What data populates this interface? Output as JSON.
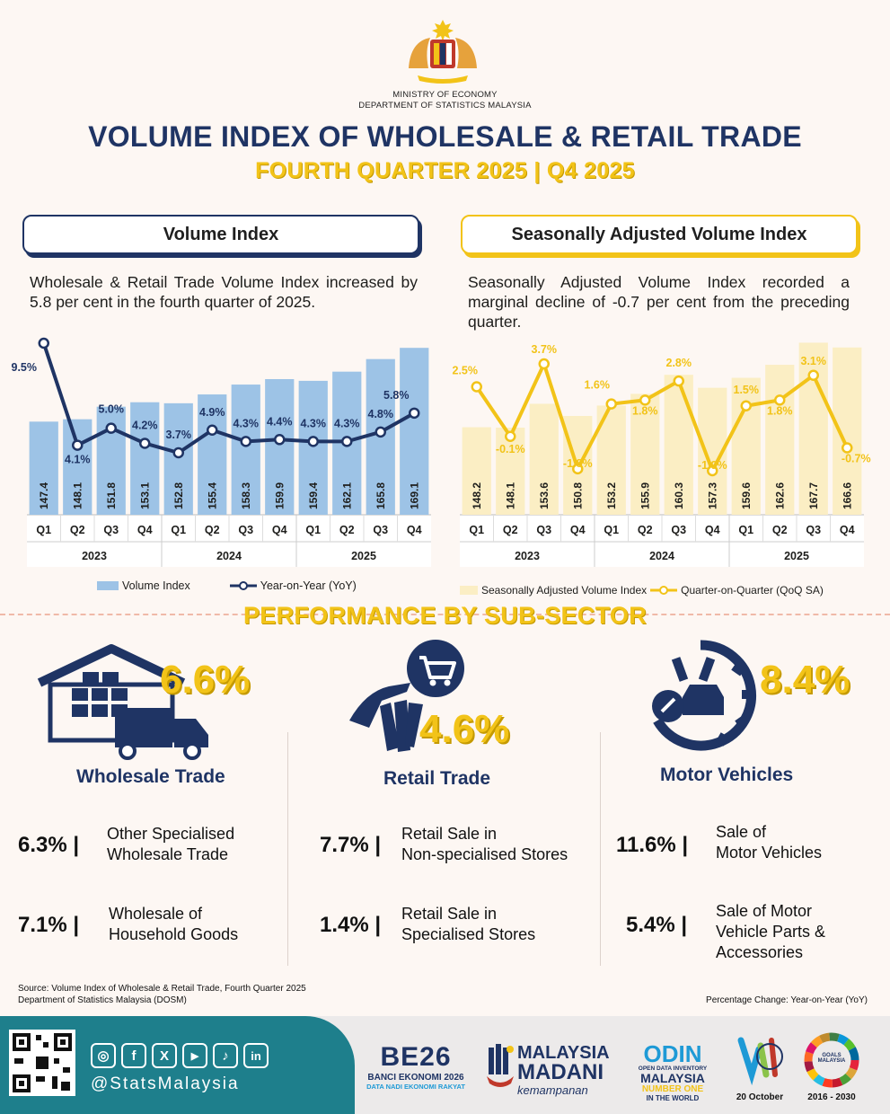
{
  "header": {
    "ministry_line1": "MINISTRY OF ECONOMY",
    "ministry_line2": "DEPARTMENT OF STATISTICS MALAYSIA",
    "title": "VOLUME INDEX OF WHOLESALE & RETAIL TRADE",
    "subtitle": "FOURTH QUARTER 2025 | Q4 2025"
  },
  "left_panel": {
    "heading": "Volume Index",
    "description": "Wholesale & Retail Trade Volume Index increased by 5.8 per cent in the fourth quarter of 2025.",
    "legend_bar": "Volume Index",
    "legend_line": "Year-on-Year (YoY)"
  },
  "right_panel": {
    "heading": "Seasonally Adjusted Volume Index",
    "description": "Seasonally Adjusted Volume Index recorded a marginal decline of -0.7 per cent from the preceding quarter.",
    "legend_bar": "Seasonally Adjusted Volume Index",
    "legend_line": "Quarter-on-Quarter (QoQ SA)"
  },
  "chart_data": [
    {
      "type": "bar",
      "categories": [
        "Q1",
        "Q2",
        "Q3",
        "Q4",
        "Q1",
        "Q2",
        "Q3",
        "Q4",
        "Q1",
        "Q2",
        "Q3",
        "Q4"
      ],
      "years": [
        "2023",
        "2024",
        "2025"
      ],
      "series": [
        {
          "name": "Volume Index",
          "type": "bar",
          "values": [
            147.4,
            148.1,
            151.8,
            153.1,
            152.8,
            155.4,
            158.3,
            159.9,
            159.4,
            162.1,
            165.8,
            169.1
          ],
          "color": "#9dc3e6"
        },
        {
          "name": "Year-on-Year (YoY)",
          "type": "line",
          "values": [
            9.5,
            4.1,
            5.0,
            4.2,
            3.7,
            4.9,
            4.3,
            4.4,
            4.3,
            4.3,
            4.8,
            5.8
          ],
          "labels": [
            "9.5%",
            "4.1%",
            "5.0%",
            "4.2%",
            "3.7%",
            "4.9%",
            "4.3%",
            "4.4%",
            "4.3%",
            "4.3%",
            "4.8%",
            "5.8%"
          ],
          "color": "#1f3464"
        }
      ]
    },
    {
      "type": "bar",
      "categories": [
        "Q1",
        "Q2",
        "Q3",
        "Q4",
        "Q1",
        "Q2",
        "Q3",
        "Q4",
        "Q1",
        "Q2",
        "Q3",
        "Q4"
      ],
      "years": [
        "2023",
        "2024",
        "2025"
      ],
      "series": [
        {
          "name": "Seasonally Adjusted Volume Index",
          "type": "bar",
          "values": [
            148.2,
            148.1,
            153.6,
            150.8,
            153.2,
            155.9,
            160.3,
            157.3,
            159.6,
            162.6,
            167.7,
            166.6
          ],
          "color": "#fbeec4"
        },
        {
          "name": "Quarter-on-Quarter (QoQ SA)",
          "type": "line",
          "values": [
            2.5,
            -0.1,
            3.7,
            -1.8,
            1.6,
            1.8,
            2.8,
            -1.9,
            1.5,
            1.8,
            3.1,
            -0.7
          ],
          "labels": [
            "2.5%",
            "-0.1%",
            "3.7%",
            "-1.8%",
            "1.6%",
            "1.8%",
            "2.8%",
            "-1.9%",
            "1.5%",
            "1.8%",
            "3.1%",
            "-0.7%"
          ],
          "color": "#f2c318"
        }
      ]
    }
  ],
  "performance": {
    "title": "PERFORMANCE BY SUB-SECTOR",
    "sectors": [
      {
        "name": "Wholesale Trade",
        "pct": "6.6%",
        "items": [
          {
            "pct": "6.3% |",
            "label1": "Other Specialised",
            "label2": "Wholesale Trade",
            "label3": ""
          },
          {
            "pct": "7.1% |",
            "label1": "Wholesale of",
            "label2": "Household Goods",
            "label3": ""
          }
        ]
      },
      {
        "name": "Retail Trade",
        "pct": "4.6%",
        "items": [
          {
            "pct": "7.7% |",
            "label1": "Retail Sale in",
            "label2": "Non-specialised Stores",
            "label3": ""
          },
          {
            "pct": "1.4% |",
            "label1": "Retail Sale in",
            "label2": "Specialised Stores",
            "label3": ""
          }
        ]
      },
      {
        "name": "Motor Vehicles",
        "pct": "8.4%",
        "items": [
          {
            "pct": "11.6% |",
            "label1": "Sale of",
            "label2": "Motor Vehicles",
            "label3": ""
          },
          {
            "pct": "5.4% |",
            "label1": "Sale of Motor",
            "label2": "Vehicle Parts &",
            "label3": "Accessories"
          }
        ]
      }
    ]
  },
  "source": {
    "line1": "Source: Volume Index of Wholesale & Retail Trade, Fourth Quarter 2025",
    "line2": "Department of Statistics Malaysia (DOSM)",
    "note": "Percentage Change: Year-on-Year (YoY)"
  },
  "footer": {
    "social_icons": [
      "instagram-icon",
      "facebook-icon",
      "x-icon",
      "youtube-icon",
      "tiktok-icon",
      "linkedin-icon"
    ],
    "social_glyphs": [
      "◎",
      "f",
      "X",
      "▶",
      "♪",
      "in"
    ],
    "handle": "@StatsMalaysia",
    "logo1_main": "BE26",
    "logo1_line1": "BANCI EKONOMI 2026",
    "logo1_line2": "DATA NADI EKONOMI RAKYAT",
    "logo2_line1": "MALAYSIA",
    "logo2_line2": "MADANI",
    "logo2_line3": "kemampanan",
    "logo3_main": "ODIN",
    "logo3_line1": "OPEN DATA INVENTORY",
    "logo3_line2": "MALAYSIA",
    "logo3_line3": "NUMBER ONE",
    "logo3_line4": "IN THE WORLD",
    "logo4_caption": "20 October",
    "logo5_text": "GOALS MALAYSIA",
    "logo5_caption": "2016 - 2030"
  }
}
